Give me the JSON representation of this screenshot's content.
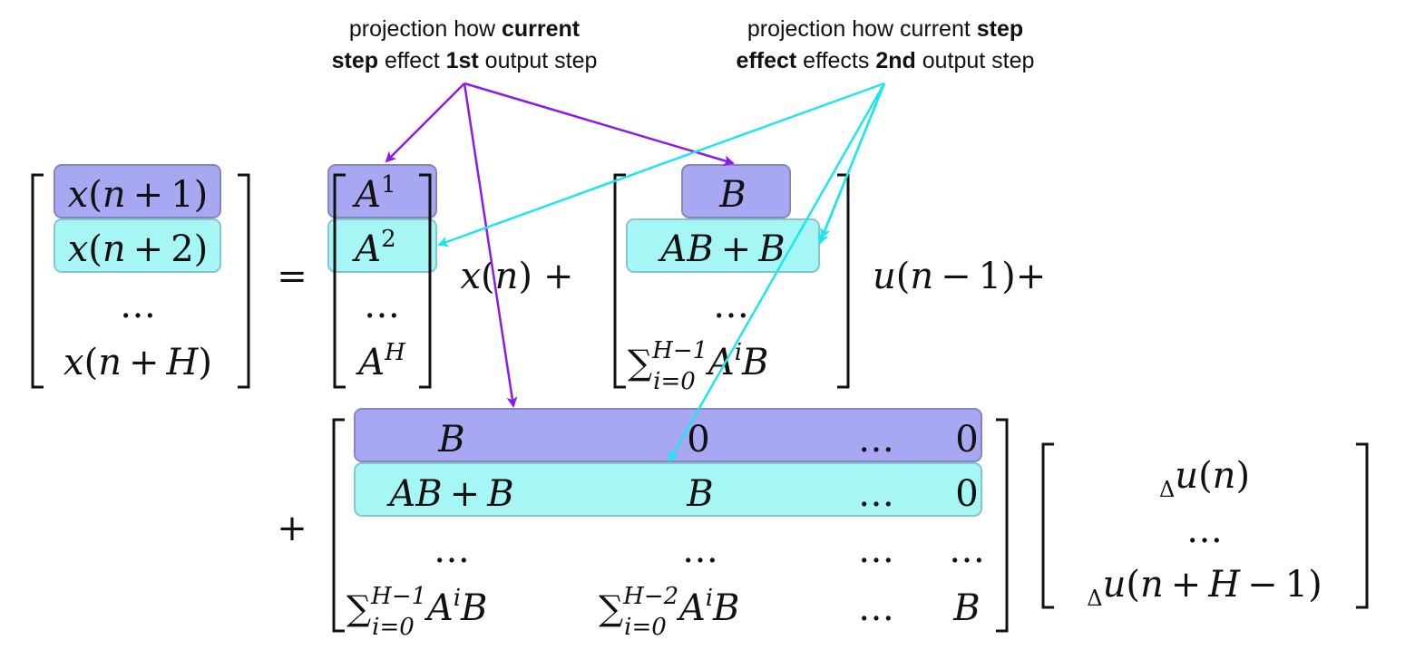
{
  "annotations": {
    "first": {
      "line1_a": "projection how ",
      "line1_b": "current",
      "line2_a": "step",
      "line2_b": " effect ",
      "line2_c": "1st",
      "line2_d": " output step"
    },
    "second": {
      "line1_a": "projection how current ",
      "line1_b": "step",
      "line2_a": "effect",
      "line2_b": " effects ",
      "line2_c": "2nd",
      "line2_d": " output step"
    }
  },
  "colors": {
    "purple_fill": "#a7a7f2",
    "purple_stroke": "#8585c2",
    "cyan_fill": "#a6f6f6",
    "cyan_stroke": "#88c4cc",
    "arrow_purple": "#8a1bf0",
    "arrow_cyan": "#1ce6ef",
    "math": "#111111"
  },
  "equation": {
    "lhs": {
      "r1_x": "x",
      "r1_open": "(",
      "r1_n": "n",
      "r1_plus": "+",
      "r1_k": "1",
      "r1_close": ")",
      "r2_x": "x",
      "r2_open": "(",
      "r2_n": "n",
      "r2_plus": "+",
      "r2_k": "2",
      "r2_close": ")",
      "r3": "…",
      "r4_x": "x",
      "r4_open": "(",
      "r4_n": "n",
      "r4_plus": "+",
      "r4_k": "H",
      "r4_close": ")"
    },
    "equals": "=",
    "A_col": {
      "r1": "A",
      "r1_sup": "1",
      "r2": "A",
      "r2_sup": "2",
      "r3": "…",
      "r4": "A",
      "r4_sup": "H"
    },
    "xn": {
      "x": "x",
      "open": "(",
      "n": "n",
      "close": ")",
      "plus": "+"
    },
    "B_col": {
      "r1": "B",
      "r2_a": "AB",
      "r2_plus": "+",
      "r2_b": "B",
      "r3": "…",
      "r4_sum": "∑",
      "r4_sup": "H−1",
      "r4_sub": "i=0",
      "r4_A": "A",
      "r4_i": "i",
      "r4_B": "B"
    },
    "u_prev": {
      "u": "u",
      "open": "(",
      "n": "n",
      "minus": "−",
      "k": "1",
      "close": ")",
      "plus": "+"
    },
    "plus2": "+",
    "big": {
      "r1": {
        "c1": "B",
        "c2": "0",
        "c3": "…",
        "c4": "0"
      },
      "r2": {
        "c1_a": "AB",
        "c1_plus": "+",
        "c1_b": "B",
        "c2": "B",
        "c3": "…",
        "c4": "0"
      },
      "r3": {
        "c1": "…",
        "c2": "…",
        "c3": "…",
        "c4": "…"
      },
      "r4": {
        "c1_sum": "∑",
        "c1_sup": "H−1",
        "c1_sub": "i=0",
        "c1_A": "A",
        "c1_i": "i",
        "c1_B": "B",
        "c2_sum": "∑",
        "c2_sup": "H−2",
        "c2_sub": "i=0",
        "c2_A": "A",
        "c2_i": "i",
        "c2_B": "B",
        "c3": "…",
        "c4": "B"
      }
    },
    "du": {
      "r1_delta": "Δ",
      "r1_u": "u",
      "r1_open": "(",
      "r1_n": "n",
      "r1_close": ")",
      "r2": "…",
      "r3_delta": "Δ",
      "r3_u": "u",
      "r3_open": "(",
      "r3_n": "n",
      "r3_plus": "+",
      "r3_H": "H",
      "r3_minus": "−",
      "r3_k": "1",
      "r3_close": ")"
    }
  }
}
